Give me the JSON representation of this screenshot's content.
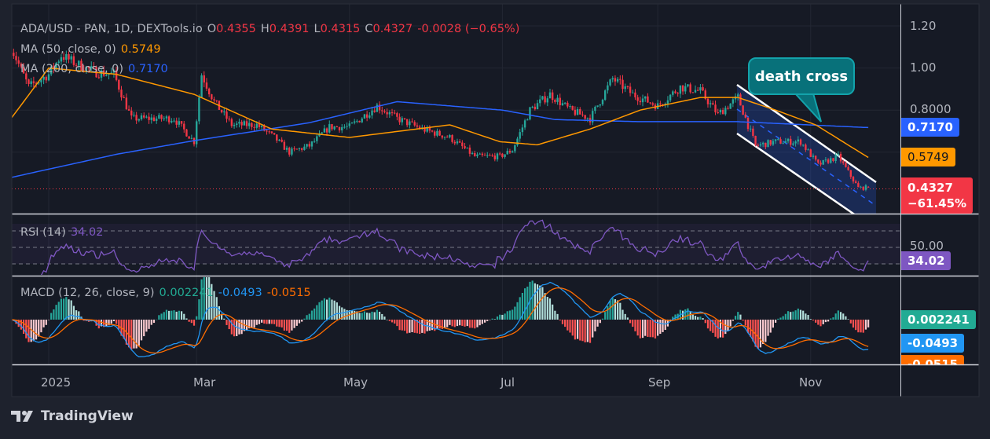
{
  "legend": {
    "symbol": "ADA/USD - PAN, 1D, DEXTools.io",
    "open_label": "O",
    "open": "0.4355",
    "high_label": "H",
    "high": "0.4391",
    "low_label": "L",
    "low": "0.4315",
    "close_label": "C",
    "close": "0.4327",
    "change": "-0.0028 (−0.65%)",
    "ma50_label": "MA (50, close, 0)",
    "ma50_value": "0.5749",
    "ma200_label": "MA (200, close, 0)",
    "ma200_value": "0.7170",
    "rsi_label": "RSI (14)",
    "rsi_value": "34.02",
    "macd_label": "MACD (12, 26, close, 9)",
    "macd_hist": "0.002241",
    "macd_line": "-0.0493",
    "macd_signal": "-0.0515"
  },
  "price_axis": {
    "ticks": [
      "1.20",
      "1.00",
      "0.8000"
    ],
    "rsi_tick": "50.00",
    "badges": {
      "ma200": "0.7170",
      "ma50": "0.5749",
      "last_price": "0.4327",
      "last_change": "−61.45%",
      "rsi": "34.02",
      "macd_hist": "0.002241",
      "macd_line": "-0.0493",
      "macd_signal": "-0.0515"
    }
  },
  "time_axis": [
    "2025",
    "Mar",
    "May",
    "Jul",
    "Sep",
    "Nov"
  ],
  "annotation": {
    "callout": "death cross"
  },
  "branding": {
    "logo_text": "TradingView"
  },
  "colors": {
    "up": "#26a69a",
    "down": "#f23645",
    "ma50": "#ff9800",
    "ma200": "#2962ff",
    "rsi": "#7e57c2",
    "macd": "#2196f3",
    "signal": "#ff6d00",
    "channel": "#ffffff"
  },
  "chart_data": {
    "type": "candlestick",
    "interval": "1D",
    "series_approx_close": [
      [
        "2024-12-17",
        1.1
      ],
      [
        "2024-12-24",
        0.91
      ],
      [
        "2025-01-01",
        0.97
      ],
      [
        "2025-01-06",
        1.06
      ],
      [
        "2025-01-12",
        1.02
      ],
      [
        "2025-01-20",
        0.98
      ],
      [
        "2025-01-27",
        0.97
      ],
      [
        "2025-02-03",
        0.76
      ],
      [
        "2025-02-10",
        0.76
      ],
      [
        "2025-02-20",
        0.76
      ],
      [
        "2025-02-28",
        0.65
      ],
      [
        "2025-03-03",
        0.97
      ],
      [
        "2025-03-08",
        0.84
      ],
      [
        "2025-03-15",
        0.73
      ],
      [
        "2025-03-25",
        0.73
      ],
      [
        "2025-04-01",
        0.67
      ],
      [
        "2025-04-07",
        0.6
      ],
      [
        "2025-04-15",
        0.63
      ],
      [
        "2025-04-23",
        0.72
      ],
      [
        "2025-05-01",
        0.72
      ],
      [
        "2025-05-12",
        0.82
      ],
      [
        "2025-05-20",
        0.76
      ],
      [
        "2025-05-30",
        0.71
      ],
      [
        "2025-06-10",
        0.67
      ],
      [
        "2025-06-20",
        0.58
      ],
      [
        "2025-06-30",
        0.58
      ],
      [
        "2025-07-05",
        0.61
      ],
      [
        "2025-07-12",
        0.8
      ],
      [
        "2025-07-20",
        0.875
      ],
      [
        "2025-07-28",
        0.8
      ],
      [
        "2025-08-05",
        0.76
      ],
      [
        "2025-08-14",
        0.95
      ],
      [
        "2025-08-22",
        0.875
      ],
      [
        "2025-09-01",
        0.82
      ],
      [
        "2025-09-10",
        0.91
      ],
      [
        "2025-09-18",
        0.89
      ],
      [
        "2025-09-25",
        0.78
      ],
      [
        "2025-10-03",
        0.86
      ],
      [
        "2025-10-10",
        0.63
      ],
      [
        "2025-10-18",
        0.65
      ],
      [
        "2025-10-28",
        0.65
      ],
      [
        "2025-11-04",
        0.54
      ],
      [
        "2025-11-12",
        0.58
      ],
      [
        "2025-11-20",
        0.43
      ],
      [
        "2025-11-24",
        0.4327
      ]
    ],
    "ma50": [
      [
        "2024-12-17",
        0.76
      ],
      [
        "2025-01-01",
        1.0
      ],
      [
        "2025-01-28",
        0.97
      ],
      [
        "2025-02-28",
        0.875
      ],
      [
        "2025-03-31",
        0.71
      ],
      [
        "2025-05-01",
        0.67
      ],
      [
        "2025-06-10",
        0.73
      ],
      [
        "2025-06-30",
        0.65
      ],
      [
        "2025-07-15",
        0.635
      ],
      [
        "2025-08-05",
        0.71
      ],
      [
        "2025-08-25",
        0.8
      ],
      [
        "2025-09-18",
        0.86
      ],
      [
        "2025-10-03",
        0.86
      ],
      [
        "2025-10-18",
        0.8
      ],
      [
        "2025-11-03",
        0.73
      ],
      [
        "2025-11-24",
        0.5749
      ]
    ],
    "ma200": [
      [
        "2024-12-17",
        0.48
      ],
      [
        "2025-01-28",
        0.59
      ],
      [
        "2025-02-28",
        0.655
      ],
      [
        "2025-04-15",
        0.74
      ],
      [
        "2025-05-20",
        0.84
      ],
      [
        "2025-07-01",
        0.8
      ],
      [
        "2025-07-22",
        0.755
      ],
      [
        "2025-08-25",
        0.745
      ],
      [
        "2025-10-03",
        0.745
      ],
      [
        "2025-11-24",
        0.717
      ]
    ],
    "last": {
      "open": 0.4355,
      "high": 0.4391,
      "low": 0.4315,
      "close": 0.4327
    },
    "ylim": [
      0.37,
      1.22
    ],
    "rsi": {
      "period": 14,
      "value": 34.02,
      "bands": [
        30,
        50,
        70
      ]
    },
    "macd": {
      "fast": 12,
      "slow": 26,
      "signal": 9,
      "histogram": 0.002241,
      "macd": -0.0493,
      "signal_value": -0.0515
    },
    "annotations": {
      "descending_channel": {
        "from": "2025-10-01",
        "to": "2025-11-25"
      },
      "callout": "death cross"
    }
  }
}
